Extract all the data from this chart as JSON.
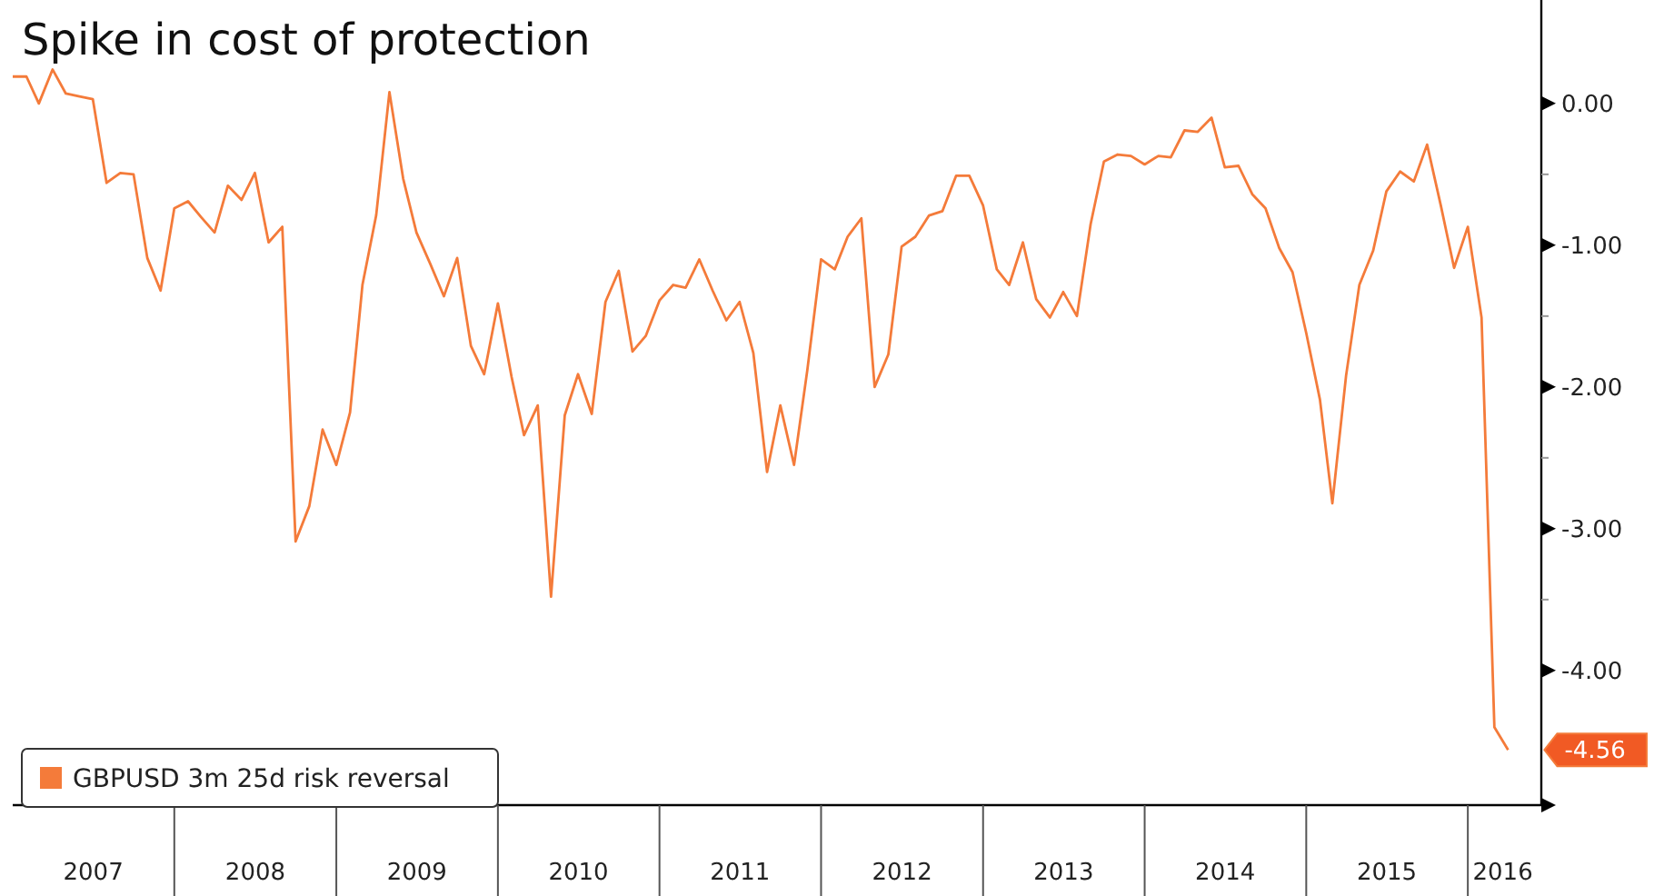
{
  "chart_data": {
    "type": "line",
    "title": "Spike in cost of protection",
    "x": [
      "2007-01",
      "2007-02",
      "2007-03",
      "2007-04",
      "2007-05",
      "2007-06",
      "2007-07",
      "2007-08",
      "2007-09",
      "2007-10",
      "2007-11",
      "2007-12",
      "2008-01",
      "2008-02",
      "2008-03",
      "2008-04",
      "2008-05",
      "2008-06",
      "2008-07",
      "2008-08",
      "2008-09",
      "2008-10",
      "2008-11",
      "2008-12",
      "2009-01",
      "2009-02",
      "2009-03",
      "2009-04",
      "2009-05",
      "2009-06",
      "2009-07",
      "2009-08",
      "2009-09",
      "2009-10",
      "2009-11",
      "2009-12",
      "2010-01",
      "2010-02",
      "2010-03",
      "2010-04",
      "2010-05",
      "2010-06",
      "2010-07",
      "2010-08",
      "2010-09",
      "2010-10",
      "2010-11",
      "2010-12",
      "2011-01",
      "2011-02",
      "2011-03",
      "2011-04",
      "2011-05",
      "2011-06",
      "2011-07",
      "2011-08",
      "2011-09",
      "2011-10",
      "2011-11",
      "2011-12",
      "2012-01",
      "2012-02",
      "2012-03",
      "2012-04",
      "2012-05",
      "2012-06",
      "2012-07",
      "2012-08",
      "2012-09",
      "2012-10",
      "2012-11",
      "2012-12",
      "2013-01",
      "2013-02",
      "2013-03",
      "2013-04",
      "2013-05",
      "2013-06",
      "2013-07",
      "2013-08",
      "2013-09",
      "2013-10",
      "2013-11",
      "2013-12",
      "2014-01",
      "2014-02",
      "2014-03",
      "2014-04",
      "2014-05",
      "2014-06",
      "2014-07",
      "2014-08",
      "2014-09",
      "2014-10",
      "2014-11",
      "2014-12",
      "2015-01",
      "2015-02",
      "2015-03",
      "2015-04",
      "2015-05",
      "2015-06",
      "2015-07",
      "2015-08",
      "2015-09",
      "2015-10",
      "2015-11",
      "2015-12",
      "2016-01",
      "2016-02",
      "2016-03",
      "2016-04"
    ],
    "series": [
      {
        "name": "GBPUSD 3m 25d risk reversal",
        "color": "#f47b3a",
        "values": [
          0.19,
          0.19,
          0.0,
          0.24,
          0.07,
          0.05,
          0.03,
          -0.56,
          -0.49,
          -0.5,
          -1.09,
          -1.32,
          -0.74,
          -0.69,
          -0.8,
          -0.91,
          -0.58,
          -0.68,
          -0.49,
          -0.98,
          -0.87,
          -3.09,
          -2.84,
          -2.3,
          -2.55,
          -2.18,
          -1.28,
          -0.79,
          0.08,
          -0.53,
          -0.91,
          -1.13,
          -1.36,
          -1.09,
          -1.71,
          -1.91,
          -1.41,
          -1.93,
          -2.34,
          -2.13,
          -3.48,
          -2.2,
          -1.91,
          -2.19,
          -1.4,
          -1.18,
          -1.75,
          -1.64,
          -1.39,
          -1.28,
          -1.3,
          -1.1,
          -1.32,
          -1.53,
          -1.4,
          -1.76,
          -2.6,
          -2.13,
          -2.55,
          -1.88,
          -1.1,
          -1.17,
          -0.94,
          -0.81,
          -2.0,
          -1.77,
          -1.01,
          -0.94,
          -0.79,
          -0.76,
          -0.51,
          -0.51,
          -0.72,
          -1.17,
          -1.28,
          -0.98,
          -1.38,
          -1.51,
          -1.33,
          -1.5,
          -0.85,
          -0.41,
          -0.36,
          -0.37,
          -0.43,
          -0.37,
          -0.38,
          -0.19,
          -0.2,
          -0.1,
          -0.45,
          -0.44,
          -0.64,
          -0.74,
          -1.02,
          -1.19,
          -1.62,
          -2.09,
          -2.82,
          -1.92,
          -1.28,
          -1.04,
          -0.62,
          -0.48,
          -0.55,
          -0.29,
          -0.72,
          -1.16,
          -0.87,
          -1.51,
          -4.4,
          -4.56
        ]
      }
    ],
    "xlim": [
      "2007-01-01",
      "2016-06-15"
    ],
    "xticks": [
      {
        "value": "2007-07-02",
        "label": "2007"
      },
      {
        "value": "2008-07-02",
        "label": "2008"
      },
      {
        "value": "2009-07-02",
        "label": "2009"
      },
      {
        "value": "2010-07-02",
        "label": "2010"
      },
      {
        "value": "2011-07-02",
        "label": "2011"
      },
      {
        "value": "2012-07-02",
        "label": "2012"
      },
      {
        "value": "2013-07-02",
        "label": "2013"
      },
      {
        "value": "2014-07-02",
        "label": "2014"
      },
      {
        "value": "2015-07-02",
        "label": "2015"
      },
      {
        "value": "2016-03-20",
        "label": "2016"
      }
    ],
    "ylim": [
      -4.95,
      0.73
    ],
    "yticks": [
      {
        "value": 0,
        "label": "0.00"
      },
      {
        "value": -0.5,
        "label": null
      },
      {
        "value": -1,
        "label": "-1.00"
      },
      {
        "value": -1.5,
        "label": null
      },
      {
        "value": -2,
        "label": "-2.00"
      },
      {
        "value": -2.5,
        "label": null
      },
      {
        "value": -3,
        "label": "-3.00"
      },
      {
        "value": -3.5,
        "label": null
      },
      {
        "value": -4,
        "label": "-4.00"
      }
    ],
    "annotations": [
      {
        "text": "-4.56",
        "x": "2016-04",
        "y": -4.56
      }
    ],
    "legend": "bottom left",
    "grid": false,
    "marker": "none",
    "line_style": "solid"
  }
}
